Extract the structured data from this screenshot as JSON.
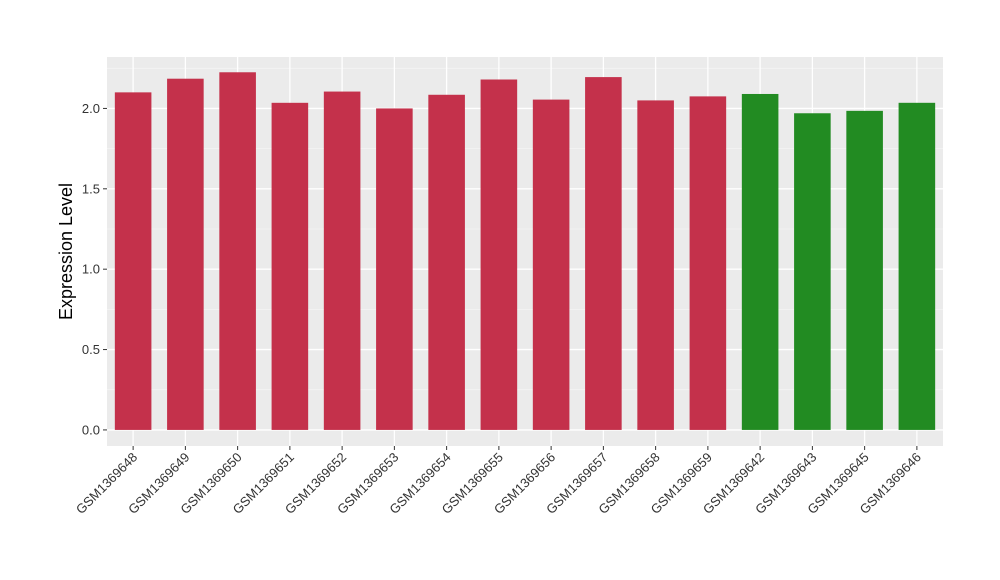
{
  "chart_data": {
    "type": "bar",
    "title": "",
    "xlabel": "",
    "ylabel": "Expression Level",
    "ylim": [
      -0.1,
      2.32
    ],
    "yticks": [
      0.0,
      0.5,
      1.0,
      1.5,
      2.0
    ],
    "ytick_labels": [
      "0.0",
      "0.5",
      "1.0",
      "1.5",
      "2.0"
    ],
    "grid": true,
    "legend": "none",
    "background_color": "#ebebeb",
    "categories": [
      "GSM1369648",
      "GSM1369649",
      "GSM1369650",
      "GSM1369651",
      "GSM1369652",
      "GSM1369653",
      "GSM1369654",
      "GSM1369655",
      "GSM1369656",
      "GSM1369657",
      "GSM1369658",
      "GSM1369659",
      "GSM1369642",
      "GSM1369643",
      "GSM1369645",
      "GSM1369646"
    ],
    "values": [
      2.1,
      2.185,
      2.225,
      2.035,
      2.105,
      2.0,
      2.085,
      2.18,
      2.055,
      2.195,
      2.05,
      2.075,
      2.09,
      1.97,
      1.985,
      2.035
    ],
    "colors": [
      "#c4314b",
      "#c4314b",
      "#c4314b",
      "#c4314b",
      "#c4314b",
      "#c4314b",
      "#c4314b",
      "#c4314b",
      "#c4314b",
      "#c4314b",
      "#c4314b",
      "#c4314b",
      "#228b22",
      "#228b22",
      "#228b22",
      "#228b22"
    ]
  }
}
